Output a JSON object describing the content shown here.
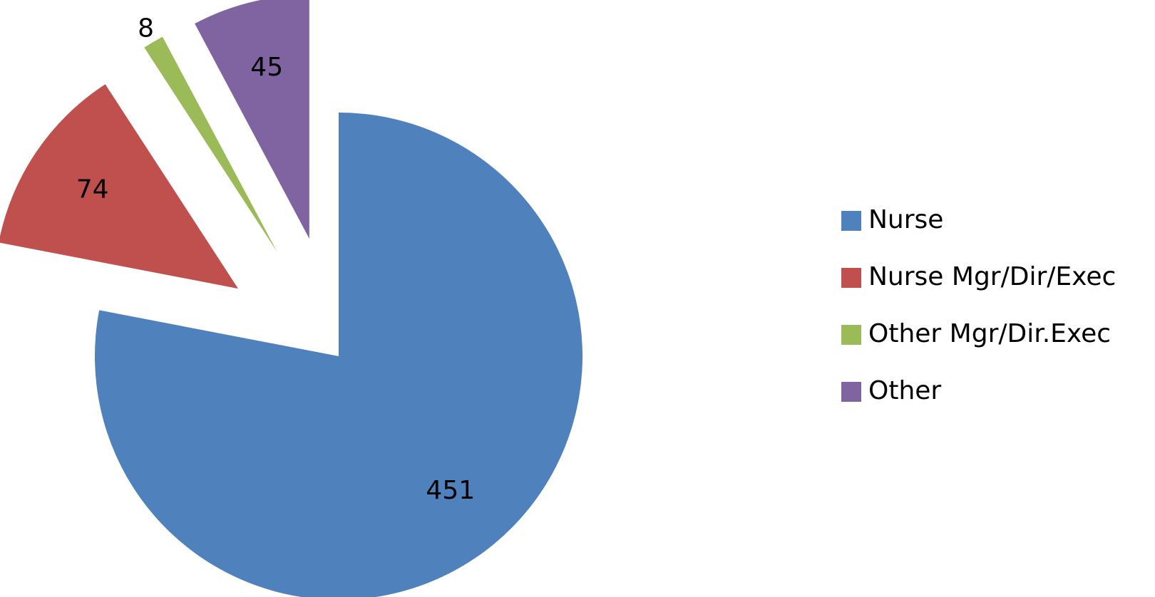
{
  "chart_data": {
    "type": "pie",
    "categories": [
      "Nurse",
      "Nurse Mgr/Dir/Exec",
      "Other Mgr/Dir.Exec",
      "Other"
    ],
    "values": [
      451,
      74,
      8,
      45
    ],
    "colors": [
      "#4f81bd",
      "#c0504d",
      "#9bbb59",
      "#8064a2"
    ],
    "exploded": [
      false,
      true,
      true,
      true
    ],
    "legend": "right"
  }
}
